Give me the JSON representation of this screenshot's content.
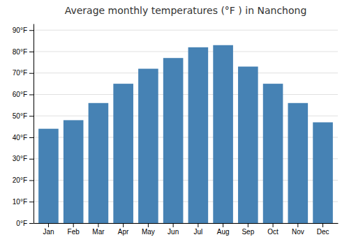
{
  "chart_data": {
    "type": "bar",
    "title": "Average monthly temperatures (°F ) in Nanchong",
    "categories": [
      "Jan",
      "Feb",
      "Mar",
      "Apr",
      "May",
      "Jun",
      "Jul",
      "Aug",
      "Sep",
      "Oct",
      "Nov",
      "Dec"
    ],
    "values": [
      44,
      48,
      56,
      65,
      72,
      77,
      82,
      83,
      73,
      65,
      56,
      47
    ],
    "ylim": [
      0,
      93
    ],
    "yticks": [
      {
        "value": 0,
        "label": "0°F"
      },
      {
        "value": 10,
        "label": "10°F"
      },
      {
        "value": 20,
        "label": "20°F"
      },
      {
        "value": 30,
        "label": "30°F"
      },
      {
        "value": 40,
        "label": "40°F"
      },
      {
        "value": 50,
        "label": "50°F"
      },
      {
        "value": 60,
        "label": "60°F"
      },
      {
        "value": 70,
        "label": "70°F"
      },
      {
        "value": 80,
        "label": "80°F"
      },
      {
        "value": 90,
        "label": "90°F"
      }
    ],
    "grid": true
  }
}
